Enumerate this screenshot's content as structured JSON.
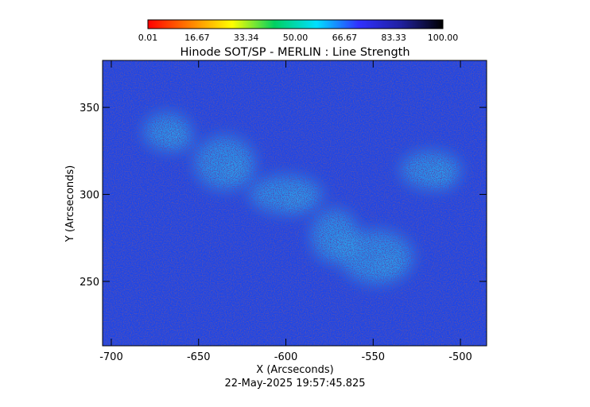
{
  "chart_data": {
    "type": "heatmap",
    "title": "Hinode SOT/SP - MERLIN : Line Strength",
    "xlabel": "X (Arcseconds)",
    "ylabel": "Y (Arcseconds)",
    "timestamp": "22-May-2025 19:57:45.825",
    "xlim": [
      -705,
      -485
    ],
    "ylim": [
      213,
      377
    ],
    "xticks": [
      -700,
      -650,
      -600,
      -550,
      -500
    ],
    "xtick_labels": [
      "-700",
      "-650",
      "-600",
      "-550",
      "-500"
    ],
    "yticks": [
      250,
      300,
      350
    ],
    "ytick_labels": [
      "250",
      "300",
      "350"
    ],
    "colorbar": {
      "range": [
        0.01,
        100.0
      ],
      "tick_labels": [
        "0.01",
        "16.67",
        "33.34",
        "50.00",
        "66.67",
        "83.33",
        "100.00"
      ],
      "colormap": [
        "#ff0000",
        "#ff8000",
        "#ffff00",
        "#00d060",
        "#00e0ff",
        "#3030ff",
        "#2020a0",
        "#000000"
      ]
    },
    "features": [
      {
        "x": -668,
        "y": 336,
        "level": 66,
        "note": "network patch"
      },
      {
        "x": -635,
        "y": 318,
        "level": 64,
        "note": "network patch"
      },
      {
        "x": -600,
        "y": 300,
        "level": 65,
        "note": "network patch"
      },
      {
        "x": -572,
        "y": 276,
        "level": 64,
        "note": "network patch"
      },
      {
        "x": -517,
        "y": 314,
        "level": 65,
        "note": "network patch"
      },
      {
        "x": -548,
        "y": 264,
        "level": 63,
        "note": "network patch"
      }
    ]
  },
  "colors": {
    "background_field": "#1e46e6",
    "dark_speckle": "#141478",
    "bright_patch": "#2aa8ee"
  }
}
